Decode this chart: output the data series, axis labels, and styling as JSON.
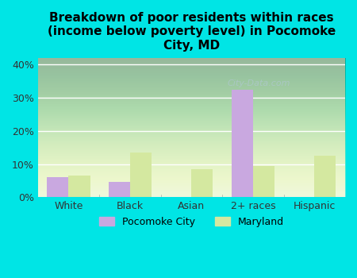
{
  "categories": [
    "White",
    "Black",
    "Asian",
    "2+ races",
    "Hispanic"
  ],
  "pocomoke": [
    6.0,
    4.5,
    0.0,
    32.5,
    0.0
  ],
  "maryland": [
    6.5,
    13.5,
    8.5,
    9.5,
    12.5
  ],
  "pocomoke_color": "#c9a8e0",
  "maryland_color": "#d4e8a0",
  "title": "Breakdown of poor residents within races\n(income below poverty level) in Pocomoke\nCity, MD",
  "ylim": [
    0,
    42
  ],
  "yticks": [
    0,
    10,
    20,
    30,
    40
  ],
  "ytick_labels": [
    "0%",
    "10%",
    "20%",
    "30%",
    "40%"
  ],
  "background_color": "#00e5e5",
  "legend_label_1": "Pocomoke City",
  "legend_label_2": "Maryland",
  "bar_width": 0.35,
  "title_fontsize": 11,
  "watermark": "City-Data.com"
}
